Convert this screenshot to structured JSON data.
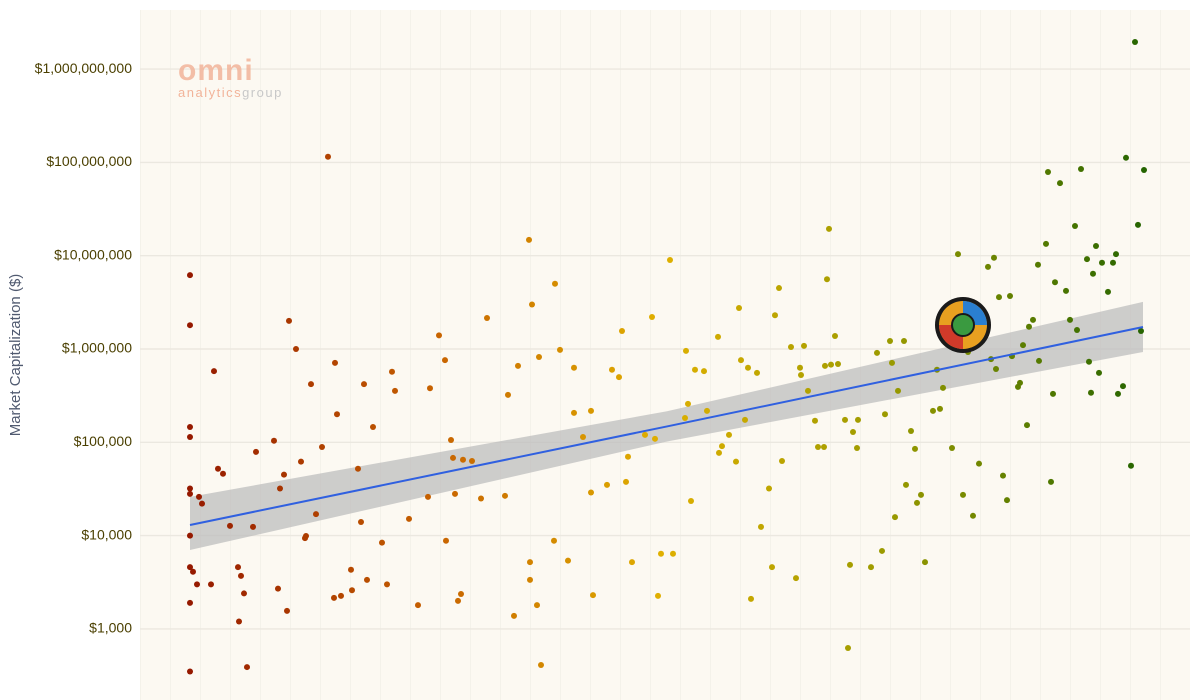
{
  "chart_data": {
    "type": "scatter",
    "y_label": "Market Capitalization ($)",
    "log_y": true,
    "grid": true,
    "xlim": [
      0,
      1050
    ],
    "ylim": [
      173,
      4300000000
    ],
    "yticks": [
      {
        "value": 1000,
        "label": "$1,000"
      },
      {
        "value": 10000,
        "label": "$10,000"
      },
      {
        "value": 100000,
        "label": "$100,000"
      },
      {
        "value": 1000000,
        "label": "$1,000,000"
      },
      {
        "value": 10000000,
        "label": "$10,000,000"
      },
      {
        "value": 100000000,
        "label": "$100,000,000"
      },
      {
        "value": 1000000000,
        "label": "$1,000,000,000"
      }
    ],
    "logo": {
      "mark": "omni",
      "text": "analytics",
      "text2": "group"
    },
    "color_scale": {
      "stops": [
        0,
        300,
        520,
        750,
        1050
      ],
      "colors": [
        "#8b0a00",
        "#c86400",
        "#e0b000",
        "#9a9a00",
        "#0f5a00"
      ]
    },
    "fit": {
      "color": "#3060e0",
      "band_color": "#bdbdbd",
      "x": [
        50,
        527,
        1003
      ],
      "values": [
        13000,
        148000,
        1720000
      ],
      "lower": [
        7000,
        102000,
        930000
      ],
      "upper": [
        26000,
        215000,
        3200000
      ]
    },
    "x": [
      50,
      50,
      50,
      50,
      50,
      50,
      50,
      50,
      53,
      50,
      50,
      59,
      62,
      57,
      71,
      74,
      78,
      83,
      90,
      98,
      101,
      104,
      99,
      107,
      113,
      116,
      134,
      140,
      144,
      138,
      147,
      149,
      156,
      161,
      165,
      166,
      171,
      176,
      182,
      188,
      194,
      195,
      197,
      201,
      211,
      212,
      218,
      221,
      224,
      227,
      233,
      242,
      247,
      252,
      255,
      269,
      278,
      288,
      290,
      299,
      306,
      305,
      311,
      313,
      315,
      318,
      321,
      323,
      332,
      341,
      347,
      365,
      368,
      374,
      378,
      389,
      390,
      392,
      390,
      397,
      399,
      401,
      415,
      414,
      420,
      428,
      434,
      434,
      443,
      451,
      451,
      453,
      467,
      472,
      479,
      482,
      486,
      488,
      492,
      505,
      512,
      515,
      518,
      521,
      530,
      533,
      545,
      546,
      548,
      551,
      555,
      564,
      567,
      578,
      579,
      582,
      589,
      596,
      599,
      601,
      605,
      608,
      611,
      617,
      621,
      629,
      632,
      635,
      639,
      642,
      651,
      656,
      660,
      661,
      664,
      668,
      675,
      678,
      684,
      685,
      687,
      689,
      691,
      695,
      698,
      705,
      708,
      710,
      713,
      717,
      718,
      731,
      737,
      742,
      745,
      750,
      752,
      755,
      758,
      764,
      766,
      771,
      775,
      777,
      781,
      785,
      793,
      797,
      800,
      803,
      812,
      818,
      823,
      828,
      833,
      839,
      848,
      851,
      854,
      856,
      859,
      863,
      867,
      870,
      872,
      878,
      880,
      883,
      887,
      889,
      893,
      898,
      899,
      906,
      908,
      911,
      913,
      915,
      920,
      926,
      930,
      935,
      937,
      941,
      947,
      949,
      951,
      953,
      956,
      959,
      962,
      968,
      973,
      976,
      978,
      983,
      986,
      991,
      995,
      998,
      1004,
      1001
    ],
    "values": [
      6200000,
      1800000,
      146000,
      114000,
      32000,
      28000,
      10000,
      4600,
      4100,
      1900,
      350,
      26000,
      22000,
      3000,
      3000,
      580000,
      52000,
      46000,
      12700,
      4600,
      3700,
      2400,
      1200,
      390,
      12400,
      79000,
      104000,
      32000,
      45000,
      2700,
      1560,
      2000000,
      1000000,
      62000,
      9400,
      9900,
      420000,
      17000,
      89000,
      115000000,
      2150,
      710000,
      200000,
      2260,
      4300,
      2600,
      52000,
      14000,
      420000,
      3350,
      146000,
      8400,
      3000,
      570000,
      356000,
      15100,
      1800,
      26000,
      380000,
      1400000,
      8800,
      760000,
      106000,
      68000,
      28000,
      2000,
      2370,
      65000,
      63000,
      25000,
      2150000,
      26700,
      322000,
      1380,
      660000,
      14800000,
      5200,
      3000000,
      3350,
      1800,
      820000,
      410,
      5000000,
      8800,
      980000,
      5400,
      630000,
      207000,
      114000,
      29000,
      217000,
      2300,
      35000,
      600000,
      500000,
      1560000,
      37700,
      70000,
      5200,
      120000,
      2200000,
      109000,
      2260,
      6400,
      9000000,
      6400,
      182000,
      955000,
      258000,
      23500,
      600000,
      580000,
      217000,
      1350000,
      77000,
      91000,
      120000,
      62000,
      2750000,
      760000,
      174000,
      630000,
      2100,
      555000,
      12400,
      32000,
      4600,
      2300000,
      4500000,
      63000,
      1050000,
      3500,
      630000,
      527000,
      1080000,
      356000,
      170000,
      89000,
      89000,
      660000,
      5600000,
      19400000,
      680000,
      1380000,
      690000,
      174000,
      625,
      4850,
      129000,
      87000,
      174000,
      4600,
      910000,
      6850,
      200000,
      1220000,
      710000,
      15800,
      356000,
      1220000,
      35000,
      132000,
      85000,
      22400,
      27300,
      5200,
      217000,
      600000,
      228000,
      383000,
      87000,
      10400000,
      27300,
      930000,
      16300,
      59000,
      7600000,
      780000,
      9500000,
      610000,
      3600000,
      44000,
      24000,
      3700000,
      840000,
      393000,
      433000,
      1100000,
      153000,
      1730000,
      2050000,
      8000000,
      745000,
      13400000,
      79000000,
      37700,
      330000,
      5200000,
      60000000,
      4200000,
      2050000,
      20800000,
      1600000,
      85000000,
      9200000,
      730000,
      340000,
      6400000,
      12700000,
      555000,
      8400000,
      4100000,
      8400000,
      10400000,
      330000,
      400000,
      112000000,
      56000,
      1950000000,
      21400000,
      83000000,
      1560000
    ]
  }
}
